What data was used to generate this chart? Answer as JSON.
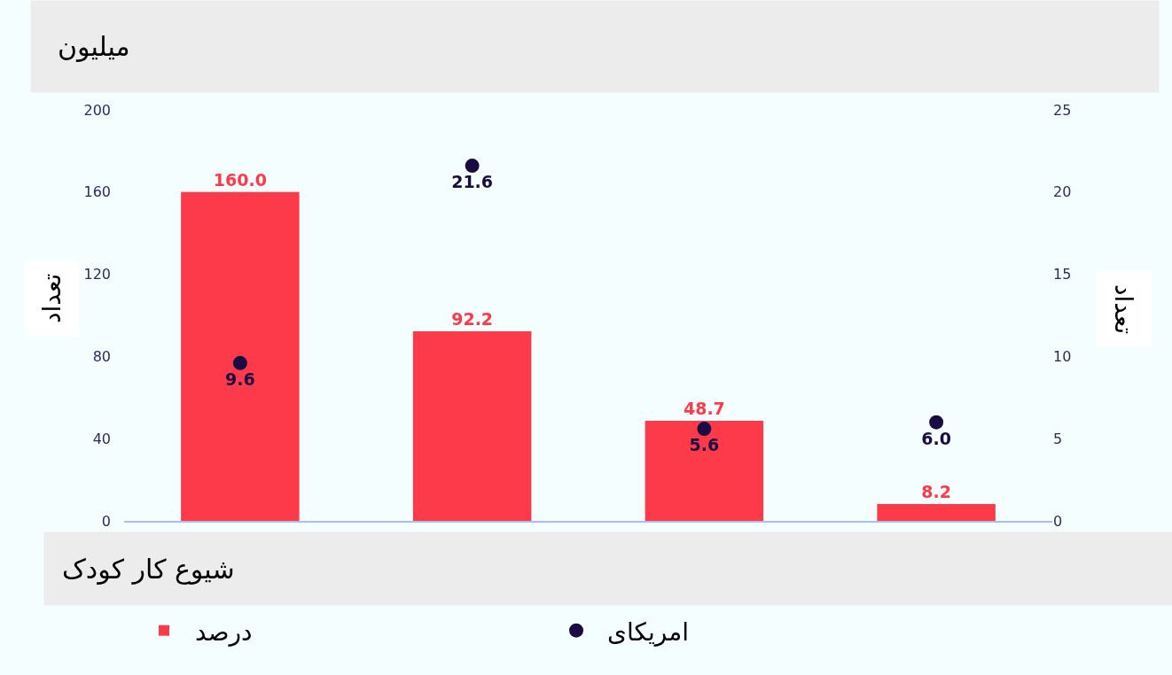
{
  "chart_data": {
    "type": "bar",
    "title": "میلیون",
    "xlabel": "شیوع کار کودک",
    "ylabel": "تعداد",
    "y2label": "تعداد",
    "categories": [
      null,
      null,
      null,
      null
    ],
    "series": [
      {
        "name": "درصد",
        "color": "#fd3a4a",
        "values": [
          160.0,
          92.2,
          48.7,
          8.2
        ],
        "value_labels": [
          "160.0",
          "92.2",
          "48.7",
          "8.2"
        ]
      },
      {
        "name": "امریکای",
        "type": "scatter",
        "axis": "y2",
        "color": "#1b0b44",
        "values": [
          9.6,
          21.6,
          5.6,
          6.0
        ],
        "value_labels": [
          "9.6",
          "21.6",
          "5.6",
          "6.0"
        ]
      }
    ],
    "ylim": [
      0,
      200
    ],
    "yticks": [
      0,
      40,
      80,
      120,
      160,
      200
    ],
    "y2lim": [
      0,
      25
    ],
    "y2ticks": [
      0,
      5,
      10,
      15,
      20,
      25
    ],
    "legend": "bottom",
    "grid": false,
    "marker": "circle"
  }
}
